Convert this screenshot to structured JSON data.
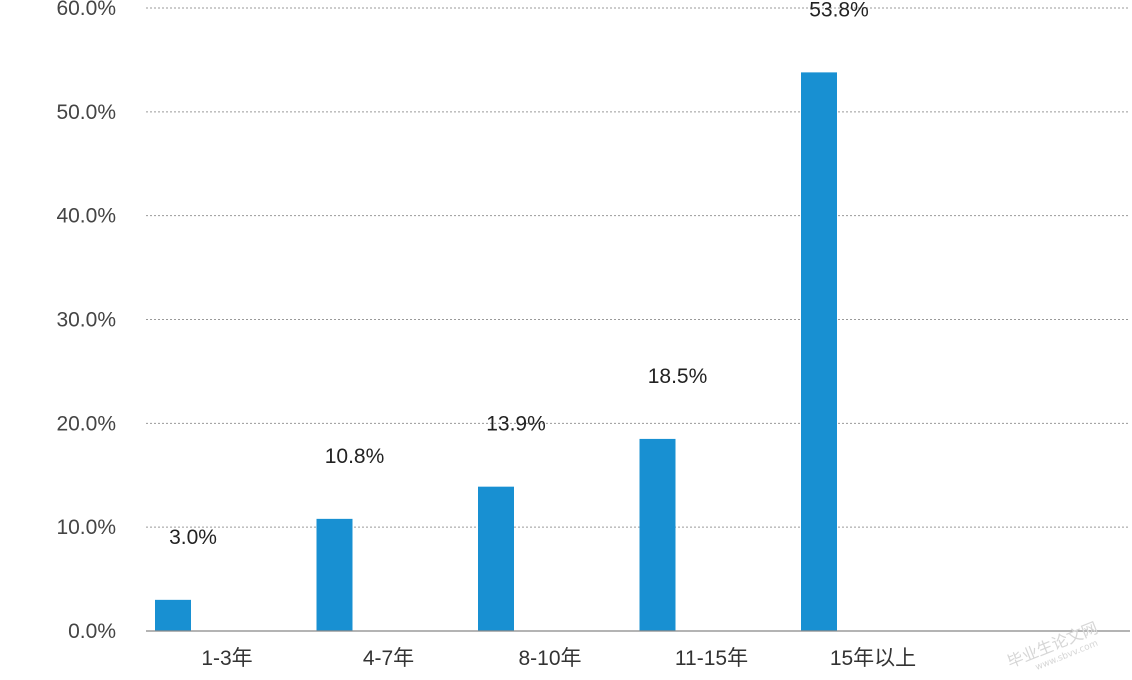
{
  "chart_data": {
    "type": "bar",
    "title": "",
    "xlabel": "",
    "ylabel": "",
    "categories": [
      "1-3年",
      "4-7年",
      "8-10年",
      "11-15年",
      "15年以上"
    ],
    "values": [
      3.0,
      10.8,
      13.9,
      18.5,
      53.8
    ],
    "value_labels": [
      "3.0%",
      "10.8%",
      "13.9%",
      "18.5%",
      "53.8%"
    ],
    "ylim": [
      0,
      60
    ],
    "y_ticks": [
      0,
      10,
      20,
      30,
      40,
      50,
      60
    ],
    "y_tick_labels": [
      "0.0%",
      "10.0%",
      "20.0%",
      "30.0%",
      "40.0%",
      "50.0%",
      "60.0%"
    ],
    "grid": true,
    "bar_color": "#1890d2",
    "grid_color": "#9a9a9a",
    "axis_color": "#888888"
  },
  "watermark": {
    "text": "毕业生论文网",
    "url": "www.sbvv.com"
  }
}
